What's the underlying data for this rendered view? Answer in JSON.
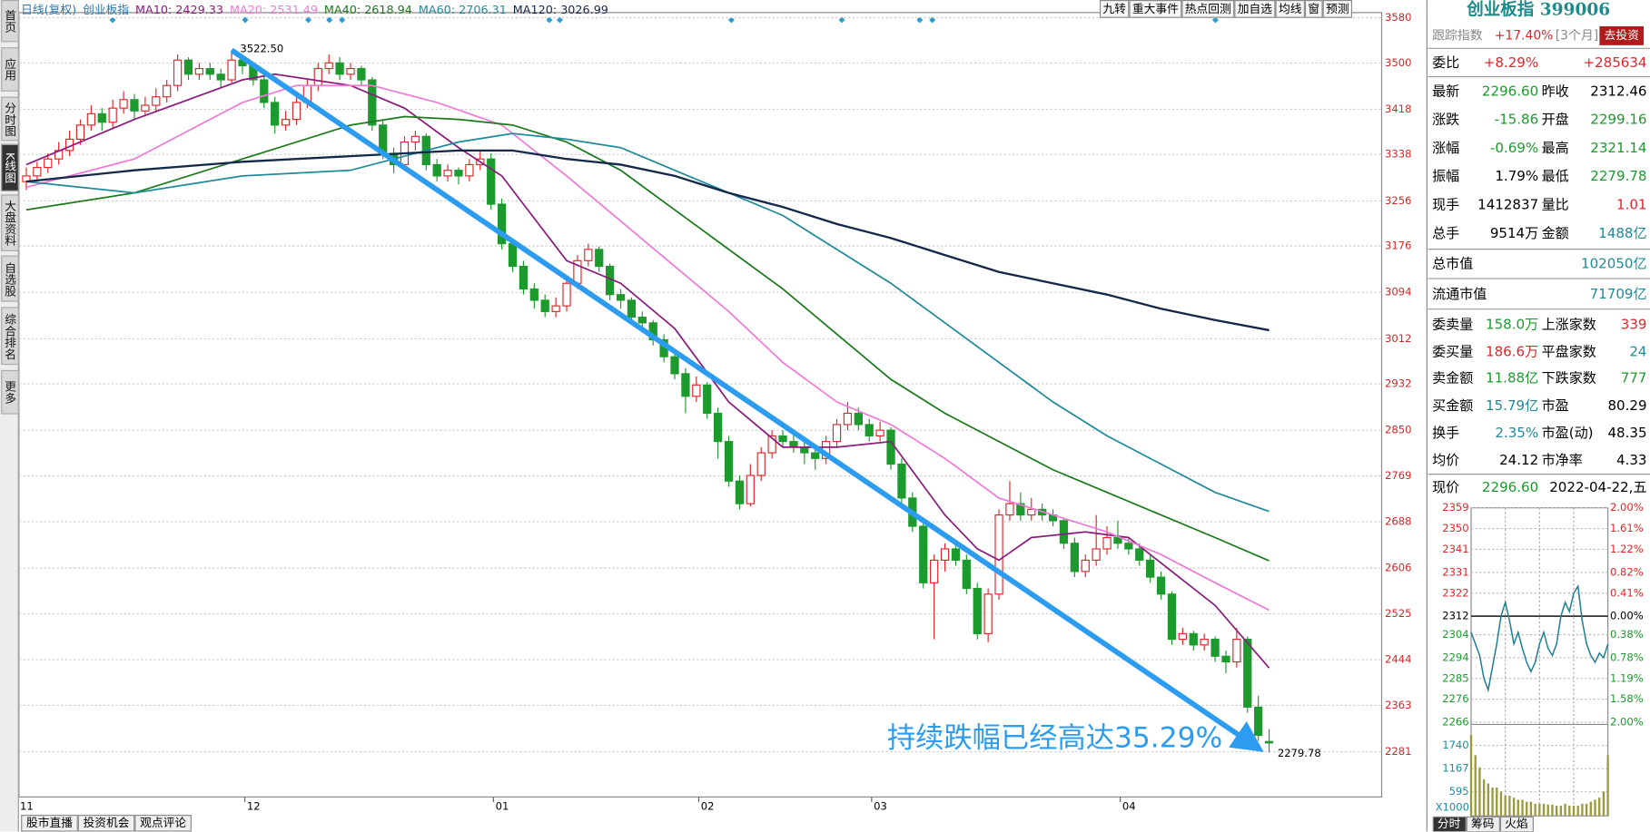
{
  "sidebar": [
    "首页",
    "应用",
    "分时图",
    "K线图",
    "大盘资料",
    "自选股",
    "综合排名",
    "更多"
  ],
  "toolbar": [
    "九转",
    "重大事件",
    "热点回测",
    "加自选",
    "均线",
    "窗",
    "预测"
  ],
  "kline": {
    "period": "日线(复权)",
    "name": "创业板指",
    "up_color": "#e0262a",
    "down_color": "#1c9a2e",
    "ma": [
      {
        "label": "MA10: 2429.33",
        "color": "#8a1c7c",
        "index": [
          0,
          10,
          20,
          23,
          30,
          35,
          40,
          44,
          50,
          55,
          60,
          65,
          70,
          75,
          80,
          85,
          88,
          90,
          93,
          98,
          102,
          106,
          110,
          115
        ],
        "values": [
          3320,
          3400,
          3470,
          3480,
          3460,
          3420,
          3350,
          3300,
          3150,
          3110,
          3030,
          2900,
          2820,
          2820,
          2830,
          2700,
          2640,
          2620,
          2660,
          2670,
          2660,
          2600,
          2540,
          2429.33
        ]
      },
      {
        "label": "MA20: 2531.49",
        "color": "#f07ad8",
        "index": [
          0,
          10,
          20,
          25,
          32,
          38,
          44,
          50,
          55,
          60,
          65,
          70,
          75,
          80,
          85,
          90,
          95,
          100,
          105,
          110,
          115
        ],
        "values": [
          3280,
          3330,
          3430,
          3460,
          3460,
          3430,
          3390,
          3300,
          3220,
          3140,
          3060,
          2970,
          2900,
          2860,
          2800,
          2730,
          2700,
          2670,
          2630,
          2580,
          2531.49
        ]
      },
      {
        "label": "MA40: 2618.94",
        "color": "#1c7a1c",
        "index": [
          0,
          10,
          20,
          30,
          35,
          40,
          45,
          50,
          55,
          60,
          65,
          70,
          75,
          80,
          85,
          90,
          95,
          100,
          105,
          110,
          115
        ],
        "values": [
          3240,
          3270,
          3330,
          3390,
          3405,
          3400,
          3390,
          3360,
          3310,
          3240,
          3170,
          3100,
          3020,
          2940,
          2880,
          2830,
          2780,
          2740,
          2700,
          2660,
          2618.94
        ]
      },
      {
        "label": "MA60: 2706.31",
        "color": "#1f8a9a",
        "index": [
          0,
          10,
          20,
          30,
          40,
          45,
          50,
          55,
          60,
          65,
          70,
          75,
          80,
          85,
          90,
          95,
          100,
          105,
          110,
          115
        ],
        "values": [
          3290,
          3270,
          3300,
          3310,
          3360,
          3375,
          3365,
          3350,
          3310,
          3270,
          3230,
          3170,
          3110,
          3040,
          2970,
          2900,
          2840,
          2790,
          2740,
          2706.31
        ]
      },
      {
        "label": "MA120: 3026.99",
        "color": "#14284a",
        "index": [
          0,
          10,
          20,
          30,
          40,
          45,
          50,
          55,
          60,
          65,
          70,
          75,
          80,
          85,
          90,
          95,
          100,
          105,
          110,
          115
        ],
        "values": [
          3290,
          3310,
          3325,
          3335,
          3345,
          3345,
          3330,
          3320,
          3300,
          3270,
          3245,
          3215,
          3190,
          3160,
          3130,
          3110,
          3090,
          3065,
          3045,
          3026.99
        ]
      }
    ],
    "candles": [
      [
        3290,
        3315,
        3275,
        3300
      ],
      [
        3300,
        3325,
        3290,
        3315
      ],
      [
        3315,
        3340,
        3305,
        3330
      ],
      [
        3330,
        3360,
        3320,
        3345
      ],
      [
        3345,
        3380,
        3335,
        3365
      ],
      [
        3365,
        3400,
        3355,
        3390
      ],
      [
        3390,
        3425,
        3380,
        3410
      ],
      [
        3410,
        3420,
        3380,
        3395
      ],
      [
        3395,
        3435,
        3385,
        3420
      ],
      [
        3420,
        3450,
        3410,
        3435
      ],
      [
        3435,
        3445,
        3400,
        3415
      ],
      [
        3415,
        3440,
        3405,
        3425
      ],
      [
        3425,
        3455,
        3415,
        3440
      ],
      [
        3440,
        3470,
        3430,
        3460
      ],
      [
        3460,
        3515,
        3450,
        3505
      ],
      [
        3505,
        3510,
        3470,
        3480
      ],
      [
        3480,
        3500,
        3470,
        3490
      ],
      [
        3490,
        3500,
        3470,
        3480
      ],
      [
        3480,
        3490,
        3455,
        3470
      ],
      [
        3470,
        3522.5,
        3465,
        3505
      ],
      [
        3505,
        3515,
        3480,
        3495
      ],
      [
        3495,
        3500,
        3460,
        3470
      ],
      [
        3470,
        3480,
        3420,
        3430
      ],
      [
        3430,
        3440,
        3375,
        3390
      ],
      [
        3390,
        3415,
        3380,
        3400
      ],
      [
        3400,
        3440,
        3390,
        3430
      ],
      [
        3430,
        3470,
        3420,
        3460
      ],
      [
        3460,
        3500,
        3450,
        3490
      ],
      [
        3490,
        3515,
        3480,
        3500
      ],
      [
        3500,
        3510,
        3470,
        3480
      ],
      [
        3480,
        3500,
        3470,
        3490
      ],
      [
        3490,
        3495,
        3460,
        3470
      ],
      [
        3470,
        3475,
        3380,
        3390
      ],
      [
        3390,
        3400,
        3330,
        3340
      ],
      [
        3340,
        3350,
        3305,
        3320
      ],
      [
        3320,
        3370,
        3310,
        3360
      ],
      [
        3360,
        3380,
        3345,
        3370
      ],
      [
        3370,
        3375,
        3310,
        3320
      ],
      [
        3320,
        3330,
        3290,
        3300
      ],
      [
        3300,
        3320,
        3290,
        3310
      ],
      [
        3310,
        3315,
        3285,
        3300
      ],
      [
        3300,
        3330,
        3290,
        3320
      ],
      [
        3320,
        3345,
        3310,
        3330
      ],
      [
        3330,
        3340,
        3240,
        3250
      ],
      [
        3250,
        3260,
        3170,
        3180
      ],
      [
        3180,
        3190,
        3130,
        3140
      ],
      [
        3140,
        3150,
        3090,
        3100
      ],
      [
        3100,
        3110,
        3065,
        3080
      ],
      [
        3080,
        3090,
        3050,
        3060
      ],
      [
        3060,
        3085,
        3050,
        3070
      ],
      [
        3070,
        3120,
        3060,
        3110
      ],
      [
        3110,
        3160,
        3100,
        3150
      ],
      [
        3150,
        3180,
        3140,
        3170
      ],
      [
        3170,
        3175,
        3130,
        3140
      ],
      [
        3140,
        3145,
        3080,
        3090
      ],
      [
        3090,
        3100,
        3065,
        3080
      ],
      [
        3080,
        3085,
        3040,
        3050
      ],
      [
        3050,
        3060,
        3030,
        3040
      ],
      [
        3040,
        3045,
        3000,
        3010
      ],
      [
        3010,
        3020,
        2970,
        2980
      ],
      [
        2980,
        2990,
        2940,
        2950
      ],
      [
        2950,
        2960,
        2880,
        2910
      ],
      [
        2910,
        2945,
        2900,
        2930
      ],
      [
        2930,
        2935,
        2870,
        2880
      ],
      [
        2880,
        2890,
        2800,
        2830
      ],
      [
        2830,
        2840,
        2750,
        2760
      ],
      [
        2760,
        2770,
        2710,
        2720
      ],
      [
        2720,
        2790,
        2715,
        2770
      ],
      [
        2770,
        2820,
        2760,
        2810
      ],
      [
        2810,
        2850,
        2800,
        2840
      ],
      [
        2840,
        2850,
        2820,
        2830
      ],
      [
        2830,
        2845,
        2810,
        2820
      ],
      [
        2820,
        2830,
        2790,
        2810
      ],
      [
        2810,
        2815,
        2780,
        2800
      ],
      [
        2800,
        2840,
        2790,
        2830
      ],
      [
        2830,
        2870,
        2820,
        2860
      ],
      [
        2860,
        2900,
        2850,
        2880
      ],
      [
        2880,
        2890,
        2850,
        2860
      ],
      [
        2860,
        2870,
        2830,
        2840
      ],
      [
        2840,
        2865,
        2830,
        2850
      ],
      [
        2850,
        2855,
        2780,
        2790
      ],
      [
        2790,
        2800,
        2720,
        2730
      ],
      [
        2730,
        2740,
        2670,
        2680
      ],
      [
        2680,
        2690,
        2570,
        2580
      ],
      [
        2580,
        2630,
        2480,
        2620
      ],
      [
        2620,
        2650,
        2600,
        2640
      ],
      [
        2640,
        2650,
        2610,
        2620
      ],
      [
        2620,
        2630,
        2560,
        2570
      ],
      [
        2570,
        2580,
        2480,
        2490
      ],
      [
        2490,
        2570,
        2475,
        2560
      ],
      [
        2560,
        2710,
        2550,
        2700
      ],
      [
        2700,
        2760,
        2690,
        2720
      ],
      [
        2720,
        2740,
        2690,
        2700
      ],
      [
        2700,
        2730,
        2690,
        2710
      ],
      [
        2710,
        2720,
        2690,
        2700
      ],
      [
        2700,
        2710,
        2680,
        2690
      ],
      [
        2690,
        2695,
        2640,
        2650
      ],
      [
        2650,
        2660,
        2590,
        2600
      ],
      [
        2600,
        2630,
        2590,
        2620
      ],
      [
        2620,
        2700,
        2610,
        2640
      ],
      [
        2640,
        2680,
        2630,
        2660
      ],
      [
        2660,
        2690,
        2640,
        2650
      ],
      [
        2650,
        2660,
        2630,
        2640
      ],
      [
        2640,
        2650,
        2610,
        2620
      ],
      [
        2620,
        2630,
        2580,
        2590
      ],
      [
        2590,
        2600,
        2550,
        2560
      ],
      [
        2560,
        2565,
        2470,
        2480
      ],
      [
        2480,
        2500,
        2470,
        2490
      ],
      [
        2490,
        2495,
        2460,
        2470
      ],
      [
        2470,
        2490,
        2460,
        2480
      ],
      [
        2480,
        2485,
        2440,
        2450
      ],
      [
        2450,
        2460,
        2420,
        2440
      ],
      [
        2440,
        2500,
        2430,
        2480
      ],
      [
        2480,
        2485,
        2350,
        2360
      ],
      [
        2360,
        2380,
        2300,
        2310
      ],
      [
        2299.16,
        2321.14,
        2279.78,
        2296.6
      ]
    ],
    "ylim": [
      2201,
      3589
    ],
    "yticks": [
      3580,
      3500,
      3418,
      3338,
      3256,
      3176,
      3094,
      3012,
      2932,
      2850,
      2769,
      2688,
      2606,
      2525,
      2444,
      2363,
      2281
    ],
    "xticks": [
      {
        "value": 0,
        "label": "11"
      },
      {
        "value": 21,
        "label": "12"
      },
      {
        "value": 44,
        "label": "01"
      },
      {
        "value": 63,
        "label": "02"
      },
      {
        "value": 79,
        "label": "03"
      },
      {
        "value": 102,
        "label": "04"
      }
    ],
    "high_label": "3522.50",
    "low_label": "2279.78",
    "annotation": "持续跌幅已经高达35.29%"
  },
  "bottom_tabs": [
    "股市直播",
    "投资机会",
    "观点评论"
  ],
  "quote": {
    "title": "创业板指 399006",
    "track": [
      "跟踪指数",
      "+17.40%",
      "[3个月]",
      "去投资"
    ],
    "rows": [
      {
        "cells": [
          "委比",
          "+8.29%",
          "+285634"
        ],
        "colors": [
          "#000",
          "#e0262a",
          "#e0262a"
        ]
      },
      {
        "cells": [
          "最新",
          "2296.60",
          "昨收",
          "2312.46"
        ],
        "colors": [
          "#000",
          "#1c9a2e",
          "#000",
          "#000"
        ]
      },
      {
        "cells": [
          "涨跌",
          "-15.86",
          "开盘",
          "2299.16"
        ],
        "colors": [
          "#000",
          "#1c9a2e",
          "#000",
          "#1c9a2e"
        ]
      },
      {
        "cells": [
          "涨幅",
          "-0.69%",
          "最高",
          "2321.14"
        ],
        "colors": [
          "#000",
          "#1c9a2e",
          "#000",
          "#1c9a2e"
        ]
      },
      {
        "cells": [
          "振幅",
          "1.79%",
          "最低",
          "2279.78"
        ],
        "colors": [
          "#000",
          "#000",
          "#000",
          "#1c9a2e"
        ]
      },
      {
        "cells": [
          "现手",
          "1412837",
          "量比",
          "1.01"
        ],
        "colors": [
          "#000",
          "#000",
          "#000",
          "#e0262a"
        ]
      },
      {
        "cells": [
          "总手",
          "9514万",
          "金额",
          "1488亿"
        ],
        "colors": [
          "#000",
          "#000",
          "#000",
          "#1f8a9a"
        ]
      },
      {
        "cells": [
          "总市值",
          "102050亿"
        ],
        "colors": [
          "#000",
          "#1f8a9a"
        ]
      },
      {
        "cells": [
          "流通市值",
          "71709亿"
        ],
        "colors": [
          "#000",
          "#1f8a9a"
        ]
      },
      {
        "cells": [
          "委卖量",
          "158.0万",
          "上涨家数",
          "339"
        ],
        "colors": [
          "#000",
          "#1c9a2e",
          "#000",
          "#e0262a"
        ]
      },
      {
        "cells": [
          "委买量",
          "186.6万",
          "平盘家数",
          "24"
        ],
        "colors": [
          "#000",
          "#e0262a",
          "#000",
          "#1f8a9a"
        ]
      },
      {
        "cells": [
          "卖金额",
          "11.88亿",
          "下跌家数",
          "777"
        ],
        "colors": [
          "#000",
          "#1c9a2e",
          "#000",
          "#1c9a2e"
        ]
      },
      {
        "cells": [
          "买金额",
          "15.79亿",
          "市盈",
          "80.29"
        ],
        "colors": [
          "#000",
          "#1f8a9a",
          "#000",
          "#000"
        ]
      },
      {
        "cells": [
          "换手",
          "2.35%",
          "市盈(动)",
          "48.35"
        ],
        "colors": [
          "#000",
          "#1f8a9a",
          "#000",
          "#000"
        ]
      },
      {
        "cells": [
          "均价",
          "24.12",
          "市净率",
          "4.33"
        ],
        "colors": [
          "#000",
          "#000",
          "#000",
          "#000"
        ]
      },
      {
        "cells": [
          "现价",
          "2296.60",
          "2022-04-22,五"
        ],
        "colors": [
          "#000",
          "#1c9a2e",
          "#000"
        ]
      }
    ]
  },
  "intraday": {
    "values": [
      2305,
      2300,
      2295,
      2285,
      2280,
      2290,
      2300,
      2312,
      2318,
      2310,
      2300,
      2305,
      2298,
      2292,
      2288,
      2292,
      2300,
      2305,
      2298,
      2295,
      2300,
      2312,
      2318,
      2314,
      2322,
      2325,
      2310,
      2300,
      2295,
      2292,
      2296,
      2294,
      2300
    ],
    "ylim": [
      2266,
      2359
    ],
    "yticks": [
      2359,
      2350,
      2341,
      2331,
      2322,
      2312,
      2304,
      2294,
      2285,
      2276,
      2266
    ],
    "pct_labels": [
      "2.00%",
      "1.61%",
      "1.22%",
      "0.82%",
      "0.41%",
      "0.00%",
      "0.38%",
      "0.78%",
      "1.19%",
      "1.58%",
      "2.00%"
    ],
    "line_color": "#1f7f8f",
    "volume": [
      2000,
      1500,
      1200,
      900,
      800,
      700,
      700,
      600,
      500,
      500,
      450,
      400,
      400,
      350,
      350,
      300,
      300,
      300,
      280,
      280,
      250,
      250,
      300,
      250,
      250,
      250,
      300,
      300,
      350,
      400,
      450,
      600,
      1500
    ],
    "vlim": [
      0,
      2261
    ],
    "vticks": [
      1740,
      1167,
      595
    ],
    "vunit": "X1000",
    "volume_color": "#9a9a3a",
    "tabs": [
      "分时",
      "筹码",
      "火焰"
    ]
  }
}
